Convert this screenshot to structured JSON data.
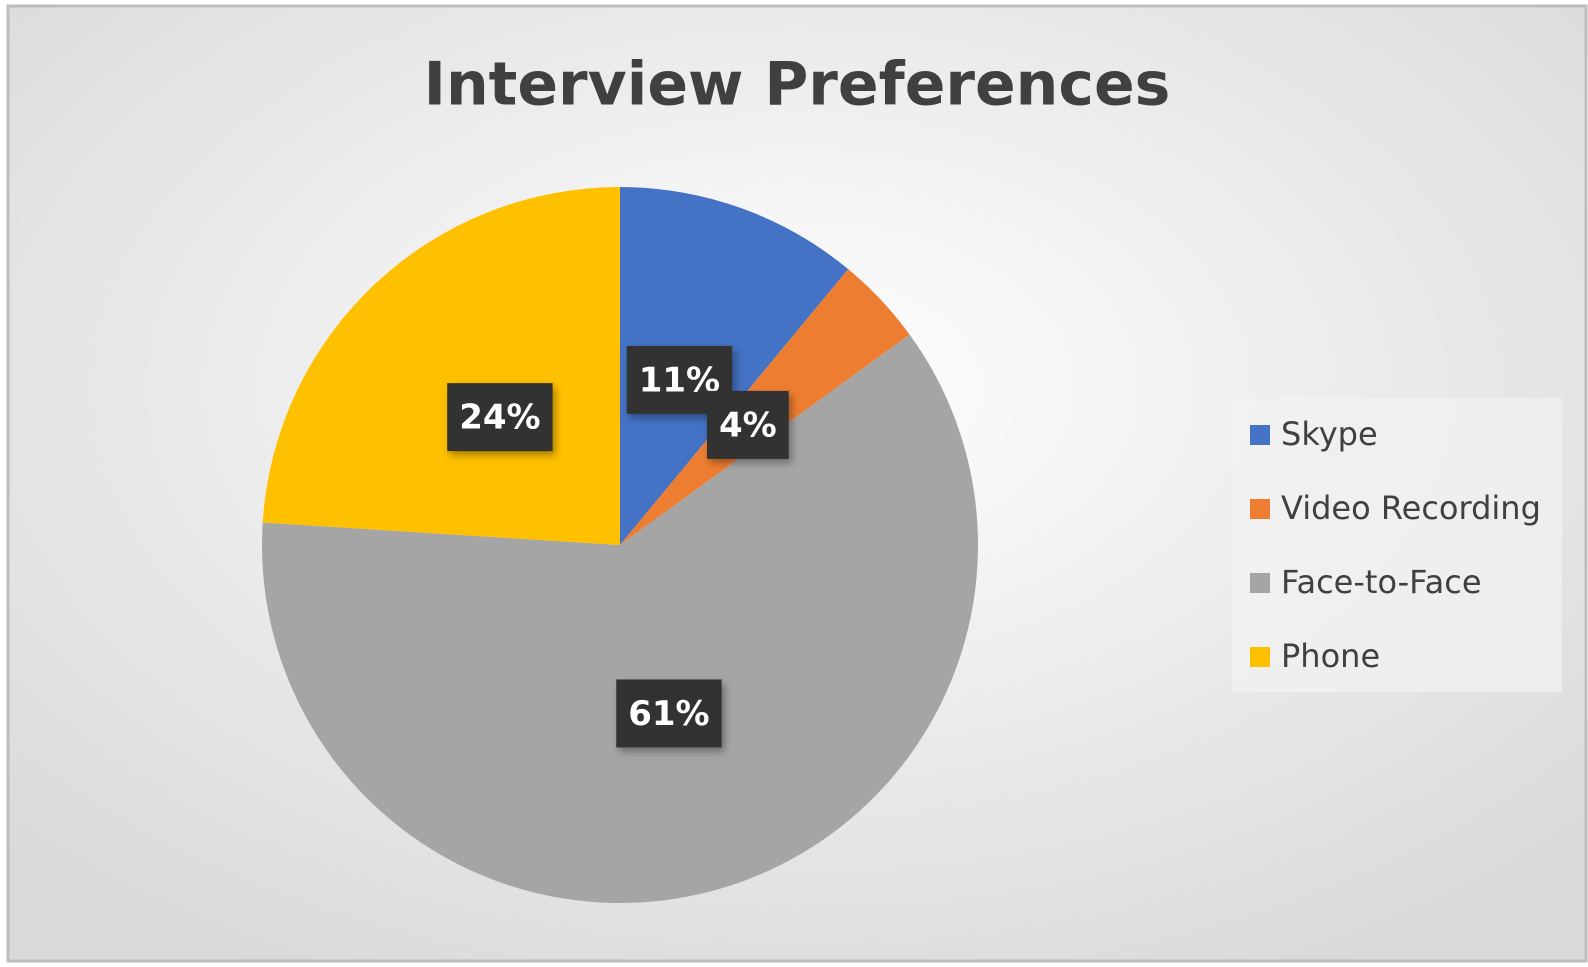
{
  "chart_data": {
    "type": "pie",
    "title": "Interview Preferences",
    "categories": [
      "Skype",
      "Video Recording",
      "Face-to-Face",
      "Phone"
    ],
    "values": [
      11,
      4,
      61,
      24
    ],
    "value_labels": [
      "11%",
      "4%",
      "61%",
      "24%"
    ],
    "colors": [
      "#4472c4",
      "#ed7d31",
      "#a5a5a5",
      "#ffc000"
    ],
    "legend": "right"
  }
}
